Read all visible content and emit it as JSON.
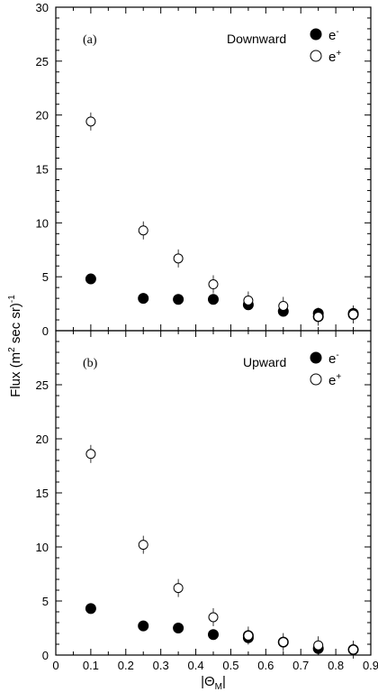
{
  "ylabel": {
    "main": "Flux (m",
    "sup1": "2",
    "mid": " sec sr)",
    "sup2": "-1"
  },
  "xlabel": {
    "bar": "|",
    "theta": "Θ",
    "sub": "M",
    "bar2": "|"
  },
  "chart_data": [
    {
      "type": "scatter",
      "panel_tag": "(a)",
      "direction": "Downward",
      "xlim": [
        0,
        0.9
      ],
      "ylim": [
        0,
        30
      ],
      "x_ticks": [
        "0",
        "0.1",
        "0.2",
        "0.3",
        "0.4",
        "0.5",
        "0.6",
        "0.7",
        "0.8",
        "0.9"
      ],
      "y_ticks": [
        "0",
        "5",
        "10",
        "15",
        "20",
        "25",
        "30"
      ],
      "legend": {
        "electron": "e",
        "electron_sup": "-",
        "positron": "e",
        "positron_sup": "+"
      },
      "series": [
        {
          "name": "e-",
          "marker": "filled",
          "x": [
            0.1,
            0.25,
            0.35,
            0.45,
            0.55,
            0.65,
            0.75,
            0.75,
            0.85,
            0.85
          ],
          "y": [
            4.8,
            3.0,
            2.9,
            2.9,
            2.4,
            1.8,
            1.6,
            1.3,
            1.6,
            1.5
          ]
        },
        {
          "name": "e+",
          "marker": "open",
          "x": [
            0.1,
            0.25,
            0.35,
            0.45,
            0.55,
            0.65,
            0.75,
            0.85
          ],
          "y": [
            19.4,
            9.3,
            6.7,
            4.3,
            2.8,
            2.3,
            1.3,
            1.5
          ]
        }
      ]
    },
    {
      "type": "scatter",
      "panel_tag": "(b)",
      "direction": "Upward",
      "xlim": [
        0,
        0.9
      ],
      "ylim": [
        0,
        30
      ],
      "x_ticks": [
        "0",
        "0.1",
        "0.2",
        "0.3",
        "0.4",
        "0.5",
        "0.6",
        "0.7",
        "0.8",
        "0.9"
      ],
      "y_ticks": [
        "0",
        "5",
        "10",
        "15",
        "20",
        "25"
      ],
      "legend": {
        "electron": "e",
        "electron_sup": "-",
        "positron": "e",
        "positron_sup": "+"
      },
      "series": [
        {
          "name": "e-",
          "marker": "filled",
          "x": [
            0.1,
            0.25,
            0.35,
            0.45,
            0.55,
            0.55,
            0.65,
            0.75,
            0.85
          ],
          "y": [
            4.3,
            2.7,
            2.5,
            1.9,
            1.8,
            1.6,
            1.2,
            0.6,
            0.5
          ]
        },
        {
          "name": "e+",
          "marker": "open",
          "x": [
            0.1,
            0.25,
            0.35,
            0.45,
            0.55,
            0.65,
            0.75,
            0.85
          ],
          "y": [
            18.6,
            10.2,
            6.2,
            3.5,
            1.8,
            1.2,
            0.9,
            0.5
          ]
        }
      ]
    }
  ]
}
